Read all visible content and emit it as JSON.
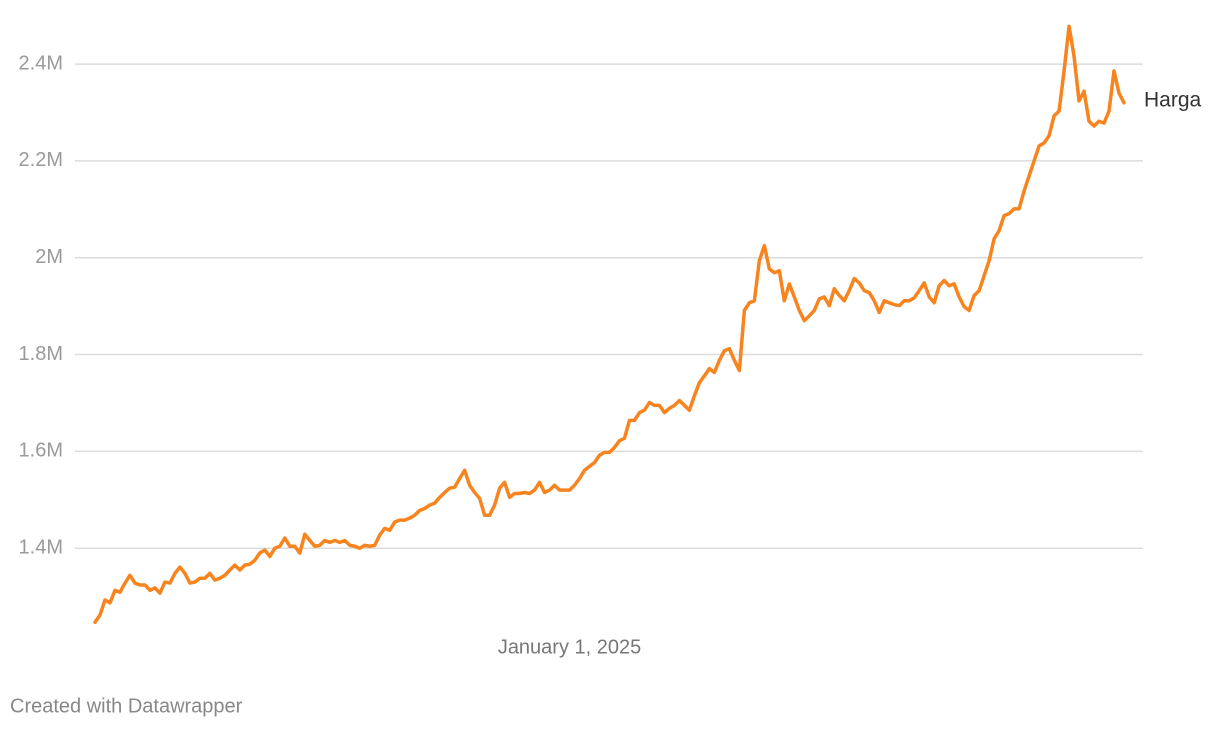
{
  "chart_data": {
    "type": "line",
    "series": [
      {
        "name": "Harga",
        "color": "#f7841e",
        "values": [
          1247000,
          1262000,
          1293000,
          1287000,
          1313000,
          1309000,
          1328000,
          1344000,
          1328000,
          1324000,
          1324000,
          1313000,
          1318000,
          1307000,
          1330000,
          1328000,
          1348000,
          1361000,
          1348000,
          1328000,
          1330000,
          1338000,
          1338000,
          1348000,
          1334000,
          1338000,
          1344000,
          1355000,
          1365000,
          1355000,
          1365000,
          1367000,
          1375000,
          1390000,
          1396000,
          1383000,
          1400000,
          1404000,
          1421000,
          1404000,
          1404000,
          1390000,
          1429000,
          1416000,
          1404000,
          1406000,
          1416000,
          1412000,
          1416000,
          1412000,
          1416000,
          1406000,
          1404000,
          1400000,
          1406000,
          1404000,
          1406000,
          1427000,
          1441000,
          1437000,
          1454000,
          1458000,
          1458000,
          1462000,
          1468000,
          1478000,
          1482000,
          1489000,
          1493000,
          1505000,
          1515000,
          1524000,
          1526000,
          1544000,
          1561000,
          1530000,
          1515000,
          1503000,
          1468000,
          1468000,
          1489000,
          1524000,
          1536000,
          1505000,
          1513000,
          1513000,
          1515000,
          1513000,
          1520000,
          1536000,
          1515000,
          1520000,
          1530000,
          1520000,
          1520000,
          1520000,
          1530000,
          1544000,
          1561000,
          1569000,
          1577000,
          1592000,
          1598000,
          1598000,
          1608000,
          1622000,
          1627000,
          1664000,
          1664000,
          1680000,
          1685000,
          1701000,
          1695000,
          1695000,
          1680000,
          1689000,
          1695000,
          1705000,
          1695000,
          1685000,
          1715000,
          1742000,
          1756000,
          1771000,
          1763000,
          1788000,
          1808000,
          1812000,
          1788000,
          1767000,
          1891000,
          1907000,
          1911000,
          1994000,
          2025000,
          1977000,
          1969000,
          1973000,
          1911000,
          1946000,
          1919000,
          1891000,
          1870000,
          1880000,
          1891000,
          1915000,
          1919000,
          1901000,
          1936000,
          1922000,
          1911000,
          1932000,
          1957000,
          1948000,
          1932000,
          1928000,
          1911000,
          1887000,
          1911000,
          1907000,
          1903000,
          1901000,
          1911000,
          1911000,
          1917000,
          1932000,
          1948000,
          1919000,
          1907000,
          1942000,
          1953000,
          1942000,
          1946000,
          1919000,
          1899000,
          1891000,
          1922000,
          1932000,
          1963000,
          1994000,
          2039000,
          2056000,
          2087000,
          2091000,
          2101000,
          2101000,
          2138000,
          2169000,
          2200000,
          2231000,
          2237000,
          2252000,
          2293000,
          2303000,
          2386000,
          2478000,
          2416000,
          2324000,
          2344000,
          2282000,
          2272000,
          2282000,
          2278000,
          2303000,
          2386000,
          2340000,
          2320000
        ]
      }
    ],
    "xlim": [
      0,
      206
    ],
    "xticks": [
      {
        "value": 95,
        "label": "January 1, 2025"
      }
    ],
    "ylim": [
      1230000,
      2490000
    ],
    "yticks": [
      {
        "value": 1400000,
        "label": "1.4M"
      },
      {
        "value": 1600000,
        "label": "1.6M"
      },
      {
        "value": 1800000,
        "label": "1.8M"
      },
      {
        "value": 2000000,
        "label": "2M"
      },
      {
        "value": 2200000,
        "label": "2.2M"
      },
      {
        "value": 2400000,
        "label": "2.4M"
      }
    ],
    "grid": true,
    "credit": "Created with Datawrapper"
  }
}
